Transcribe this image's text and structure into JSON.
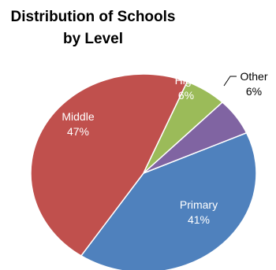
{
  "chart_data": {
    "type": "pie",
    "title_lines": [
      "Distribution of Schools",
      "by Level"
    ],
    "slices": [
      {
        "name": "Primary",
        "value": 41,
        "label": "41%",
        "color": "#4f81bd"
      },
      {
        "name": "Middle",
        "value": 47,
        "label": "47%",
        "color": "#c0504d"
      },
      {
        "name": "High",
        "value": 6,
        "label": "6%",
        "color": "#9bbb59"
      },
      {
        "name": "Other",
        "value": 6,
        "label": "6%",
        "color": "#8064a2"
      }
    ]
  }
}
